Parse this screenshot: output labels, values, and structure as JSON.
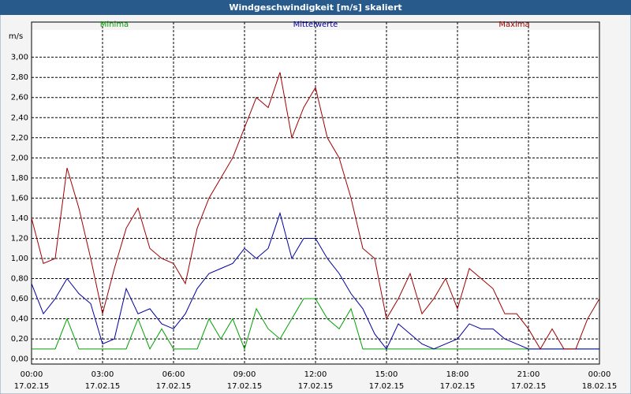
{
  "chart_data": {
    "type": "line",
    "title": "Windgeschwindigkeit [m/s] skaliert",
    "y_label": "m/s",
    "x": [
      0,
      0.5,
      1,
      1.5,
      2,
      2.5,
      3,
      3.5,
      4,
      4.5,
      5,
      5.5,
      6,
      6.5,
      7,
      7.5,
      8,
      8.5,
      9,
      9.5,
      10,
      10.5,
      11,
      11.5,
      12,
      12.5,
      13,
      13.5,
      14,
      14.5,
      15,
      15.5,
      16,
      16.5,
      17,
      17.5,
      18,
      18.5,
      19,
      19.5,
      20,
      20.5,
      21,
      21.5,
      22,
      22.5,
      23,
      23.5,
      24
    ],
    "series": [
      {
        "name": "Minima",
        "color": "#00a000",
        "values": [
          0.1,
          0.1,
          0.1,
          0.4,
          0.1,
          0.1,
          0.1,
          0.1,
          0.1,
          0.4,
          0.1,
          0.3,
          0.1,
          0.1,
          0.1,
          0.4,
          0.2,
          0.4,
          0.1,
          0.5,
          0.3,
          0.2,
          0.4,
          0.6,
          0.6,
          0.4,
          0.3,
          0.5,
          0.1,
          0.1,
          0.1,
          0.1,
          0.1,
          0.1,
          0.1,
          0.1,
          0.1,
          0.1,
          0.1,
          0.1,
          0.1,
          0.1,
          0.1,
          0.1,
          0.1,
          0.1,
          0.1,
          0.1,
          0.1
        ]
      },
      {
        "name": "Mittelwerte",
        "color": "#0000a0",
        "values": [
          0.75,
          0.45,
          0.6,
          0.8,
          0.65,
          0.55,
          0.15,
          0.2,
          0.7,
          0.45,
          0.5,
          0.35,
          0.3,
          0.45,
          0.7,
          0.85,
          0.9,
          0.95,
          1.1,
          1.0,
          1.1,
          1.45,
          1.0,
          1.2,
          1.2,
          1.0,
          0.85,
          0.65,
          0.5,
          0.25,
          0.1,
          0.35,
          0.25,
          0.15,
          0.1,
          0.15,
          0.2,
          0.35,
          0.3,
          0.3,
          0.2,
          0.15,
          0.1,
          0.1,
          0.1,
          0.1,
          0.1,
          0.1,
          0.1
        ]
      },
      {
        "name": "Maxima",
        "color": "#a00000",
        "values": [
          1.4,
          0.95,
          1.0,
          1.9,
          1.5,
          1.0,
          0.45,
          0.9,
          1.3,
          1.5,
          1.1,
          1.0,
          0.95,
          0.75,
          1.3,
          1.6,
          1.8,
          2.0,
          2.3,
          2.6,
          2.5,
          2.85,
          2.2,
          2.5,
          2.7,
          2.2,
          2.0,
          1.6,
          1.1,
          1.0,
          0.4,
          0.6,
          0.85,
          0.45,
          0.6,
          0.8,
          0.5,
          0.9,
          0.8,
          0.7,
          0.45,
          0.45,
          0.3,
          0.1,
          0.3,
          0.1,
          0.1,
          0.4,
          0.6
        ]
      }
    ],
    "xlim": [
      0,
      24
    ],
    "xticks": [
      {
        "value": 0,
        "label": "00:00"
      },
      {
        "value": 3,
        "label": "03:00"
      },
      {
        "value": 6,
        "label": "06:00"
      },
      {
        "value": 9,
        "label": "09:00"
      },
      {
        "value": 12,
        "label": "12:00"
      },
      {
        "value": 15,
        "label": "15:00"
      },
      {
        "value": 18,
        "label": "18:00"
      },
      {
        "value": 21,
        "label": "21:00"
      },
      {
        "value": 24,
        "label": "00:00"
      }
    ],
    "xtick_dates": [
      "17.02.15",
      "17.02.15",
      "17.02.15",
      "17.02.15",
      "17.02.15",
      "17.02.15",
      "17.02.15",
      "17.02.15",
      "18.02.15"
    ],
    "ylim": [
      -0.05,
      3.35
    ],
    "yticks": [
      {
        "value": 0,
        "label": "0,00"
      },
      {
        "value": 0.2,
        "label": "0,20"
      },
      {
        "value": 0.4,
        "label": "0,40"
      },
      {
        "value": 0.6,
        "label": "0,60"
      },
      {
        "value": 0.8,
        "label": "0,80"
      },
      {
        "value": 1,
        "label": "1,00"
      },
      {
        "value": 1.2,
        "label": "1,20"
      },
      {
        "value": 1.4,
        "label": "1,40"
      },
      {
        "value": 1.6,
        "label": "1,60"
      },
      {
        "value": 1.8,
        "label": "1,80"
      },
      {
        "value": 2,
        "label": "2,00"
      },
      {
        "value": 2.2,
        "label": "2,20"
      },
      {
        "value": 2.4,
        "label": "2,40"
      },
      {
        "value": 2.6,
        "label": "2,60"
      },
      {
        "value": 2.8,
        "label": "2,80"
      },
      {
        "value": 3,
        "label": "3,00"
      }
    ],
    "grid": true
  }
}
